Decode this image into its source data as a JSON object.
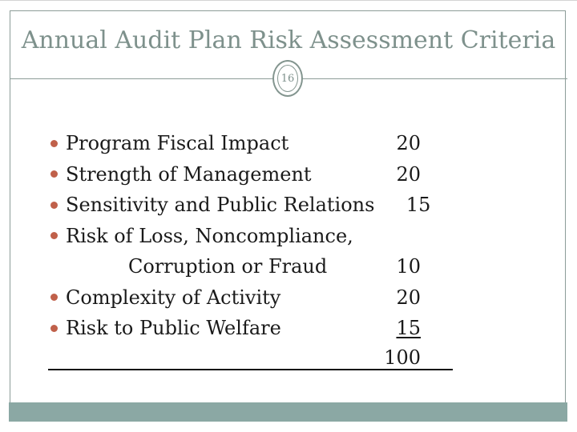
{
  "slide": {
    "title": "Annual Audit Plan Risk Assessment Criteria",
    "page_number": "16",
    "items": [
      {
        "label": "Program Fiscal Impact",
        "value": "20"
      },
      {
        "label": "Strength of Management",
        "value": "20"
      },
      {
        "label": "Sensitivity and Public Relations",
        "value": "15"
      },
      {
        "label": "Risk of Loss, Noncompliance,",
        "value": ""
      },
      {
        "label": "Corruption or Fraud",
        "value": "10"
      },
      {
        "label": "Complexity of Activity",
        "value": "20"
      },
      {
        "label": "Risk to Public Welfare",
        "value": "15"
      }
    ],
    "total": "100",
    "colors": {
      "title_text": "#7E918C",
      "bullet": "#C0604A",
      "accent_bar": "#8BA8A4",
      "frame_border": "#8C9C98",
      "body_text": "#1A1A1A"
    }
  }
}
